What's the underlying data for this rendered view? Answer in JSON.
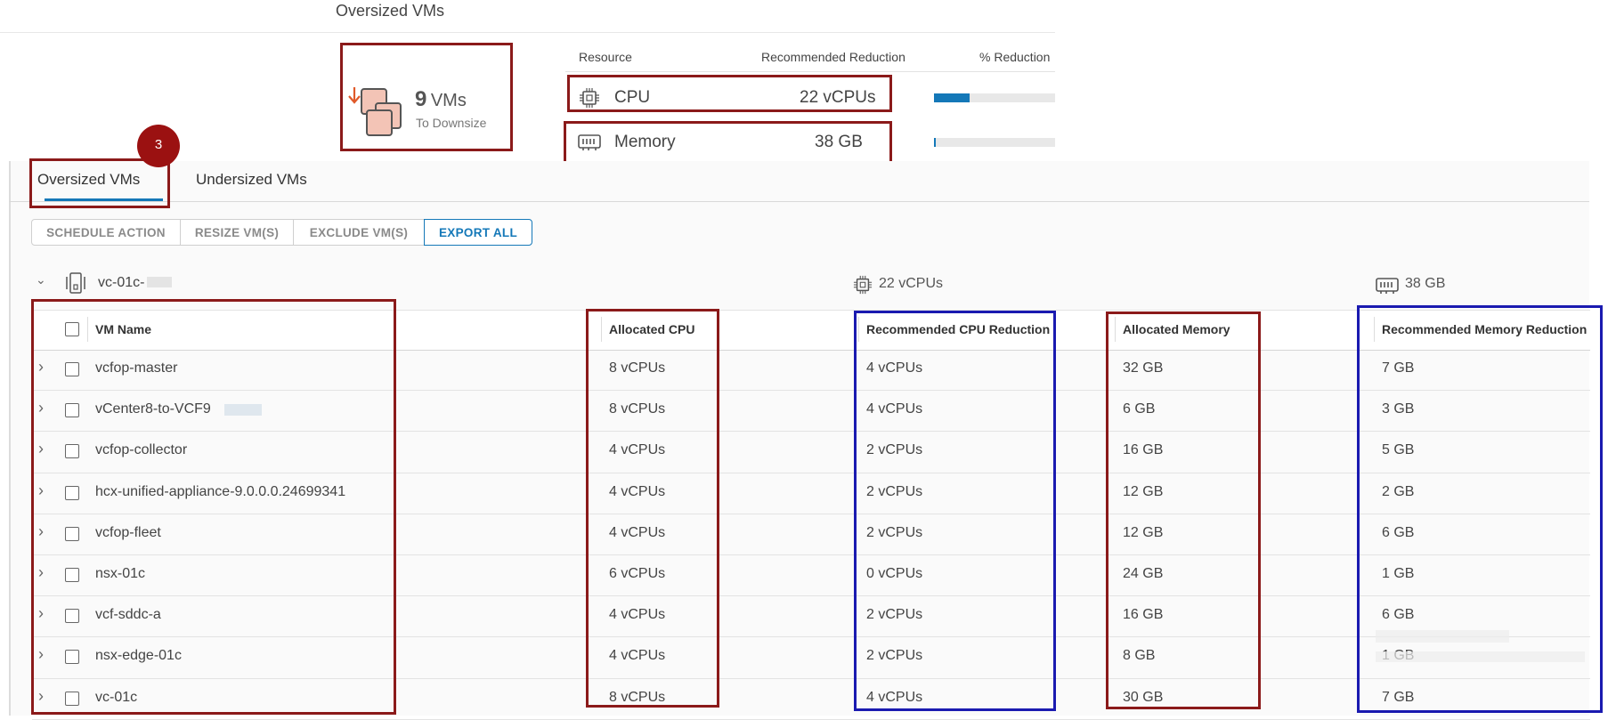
{
  "page_title": "Oversized VMs",
  "summary": {
    "count": "9",
    "count_unit": "VMs",
    "count_caption": "To Downsize",
    "headers": {
      "resource": "Resource",
      "recommended": "Recommended Reduction",
      "percent": "% Reduction"
    },
    "rows": [
      {
        "name": "CPU",
        "value": "22 vCPUs",
        "percent_fraction": 0.2
      },
      {
        "name": "Memory",
        "value": "38 GB",
        "percent_fraction": 0.01
      }
    ]
  },
  "step_badge": "3",
  "tabs": [
    {
      "label": "Oversized VMs",
      "active": true
    },
    {
      "label": "Undersized VMs",
      "active": false
    }
  ],
  "toolbar": {
    "schedule": "SCHEDULE ACTION",
    "resize": "RESIZE VM(S)",
    "exclude": "EXCLUDE VM(S)",
    "export": "EXPORT ALL"
  },
  "group": {
    "name": "vc-01c-",
    "cpu_total": "22 vCPUs",
    "mem_total": "38 GB"
  },
  "table": {
    "columns": [
      "VM Name",
      "Allocated CPU",
      "Recommended CPU Reduction",
      "Allocated Memory",
      "Recommended Memory Reduction"
    ],
    "rows": [
      [
        "vcfop-master",
        "8 vCPUs",
        "4 vCPUs",
        "32 GB",
        "7 GB"
      ],
      [
        "vCenter8-to-VCF9",
        "8 vCPUs",
        "4 vCPUs",
        "6 GB",
        "3 GB"
      ],
      [
        "vcfop-collector",
        "4 vCPUs",
        "2 vCPUs",
        "16 GB",
        "5 GB"
      ],
      [
        "hcx-unified-appliance-9.0.0.0.24699341",
        "4 vCPUs",
        "2 vCPUs",
        "12 GB",
        "2 GB"
      ],
      [
        "vcfop-fleet",
        "4 vCPUs",
        "2 vCPUs",
        "12 GB",
        "6 GB"
      ],
      [
        "nsx-01c",
        "6 vCPUs",
        "0 vCPUs",
        "24 GB",
        "1 GB"
      ],
      [
        "vcf-sddc-a",
        "4 vCPUs",
        "2 vCPUs",
        "16 GB",
        "6 GB"
      ],
      [
        "nsx-edge-01c",
        "4 vCPUs",
        "2 vCPUs",
        "8 GB",
        "1 GB"
      ],
      [
        "vc-01c",
        "8 vCPUs",
        "4 vCPUs",
        "30 GB",
        "7 GB"
      ]
    ]
  },
  "colors": {
    "annotation_red": "#8b1a1a",
    "annotation_blue": "#1a1ab0",
    "link": "#1a73a8",
    "accent": "#1478b8",
    "badge": "#9b1111"
  }
}
